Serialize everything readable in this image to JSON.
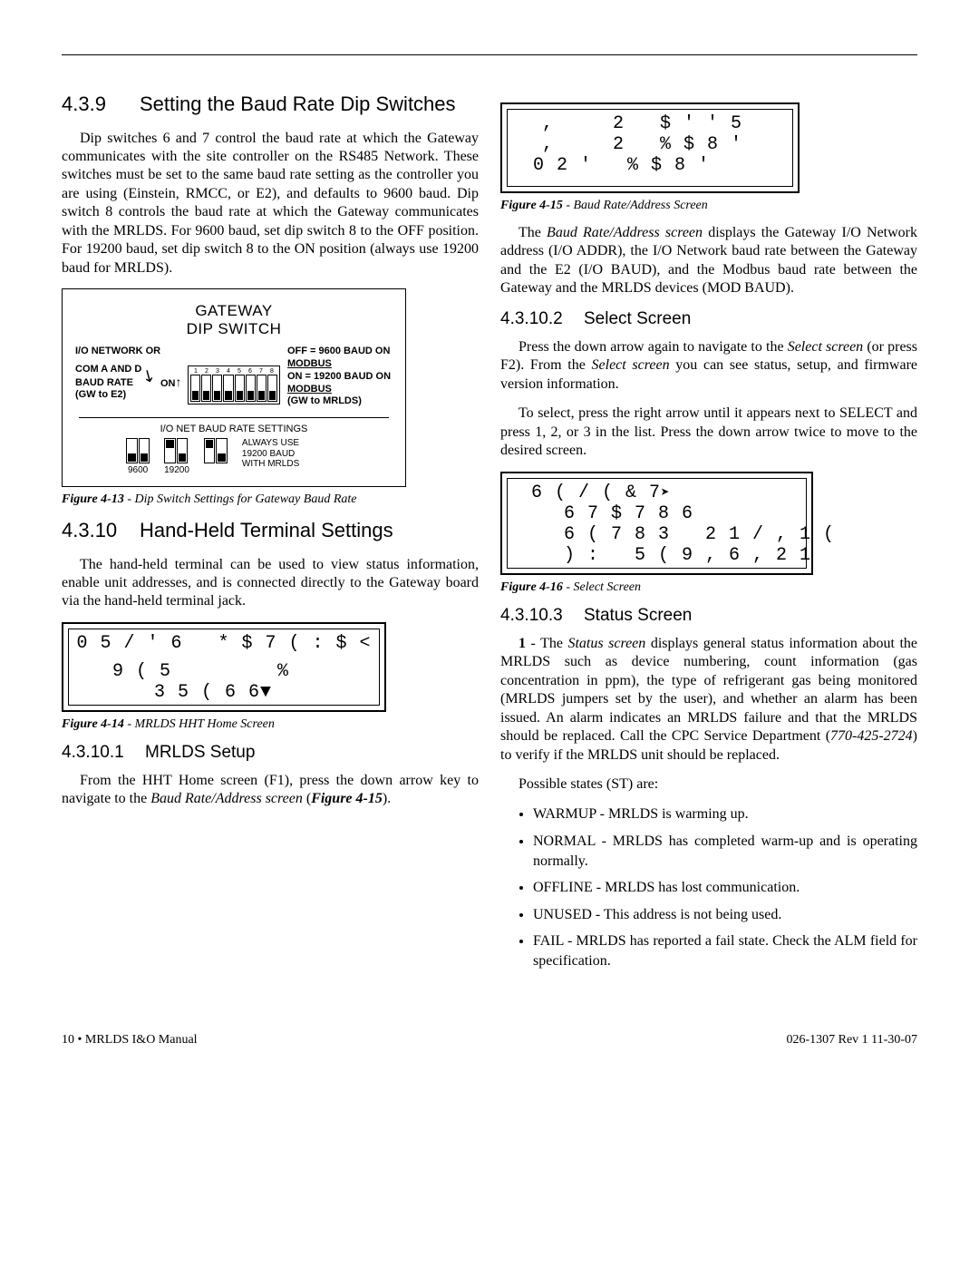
{
  "page": {
    "footer_left": "10 • MRLDS I&O Manual",
    "footer_right": "026-1307 Rev 1 11-30-07"
  },
  "s439": {
    "num": "4.3.9",
    "title": "Setting the Baud Rate Dip Switches",
    "p1": "Dip switches 6 and 7 control the baud rate at which the Gateway communicates with the site controller on the RS485 Network. These switches must be set to the same baud rate setting as the controller you are using (Einstein, RMCC, or E2), and defaults to 9600 baud. Dip switch 8 controls the baud rate at which the Gateway communicates with the MRLDS. For 9600 baud, set dip switch 8 to the OFF position. For 19200 baud, set dip switch 8 to the ON position (always use 19200 baud for MRLDS)."
  },
  "fig413": {
    "caption_b": "Figure 4-13",
    "caption_r": " - Dip Switch Settings for Gateway Baud Rate",
    "title1": "GATEWAY",
    "title2": "DIP SWITCH",
    "left_l1": "I/O NETWORK OR",
    "left_l2": "COM A AND D",
    "left_l3": "BAUD RATE",
    "left_l4": "(GW to E2)",
    "on": "ON",
    "right_l1": "OFF = 9600 BAUD ON",
    "right_l2": "MODBUS",
    "right_l3": "ON = 19200 BAUD ON",
    "right_l4": "MODBUS",
    "right_l5": "(GW to MRLDS)",
    "bset": "I/O NET BAUD RATE SETTINGS",
    "b9600": "9600",
    "b19200": "19200",
    "btxt1": "ALWAYS USE",
    "btxt2": "19200 BAUD",
    "btxt3": "WITH MRLDS",
    "dip_main_up": [
      false,
      false,
      false,
      false,
      false,
      false,
      false,
      false
    ],
    "mini_left_up": [
      false,
      false
    ],
    "mini_mid_up": [
      true,
      false
    ],
    "mini_right_up": [
      true,
      false
    ]
  },
  "s4310": {
    "num": "4.3.10",
    "title": "Hand-Held Terminal Settings",
    "p1": "The hand-held terminal can be used to view status information, enable unit addresses, and is connected directly to the Gateway board via the hand-held terminal jack."
  },
  "fig414": {
    "caption_b": "Figure 4-14",
    "caption_r": " - MRLDS HHT Home Screen",
    "l1": "0 5 / ' 6   * $ 7 ( : $ <",
    "l2": "9 ( 5         %",
    "l3": "  3 5 ( 6 6"
  },
  "s43101": {
    "num": "4.3.10.1",
    "title": "MRLDS Setup",
    "p1_a": "From the HHT Home screen (F1), press the down arrow key to navigate to the ",
    "p1_i": "Baud Rate/Address screen",
    "p1_b": " (",
    "p1_bi": "Figure 4-15",
    "p1_c": ")."
  },
  "fig415": {
    "caption_b": "Figure 4-15",
    "caption_r": " - Baud Rate/Address Screen",
    "l1": ",     2   $ ' ' 5",
    "l2": ",     2   % $ 8 '",
    "l3": "0 2 '   % $ 8 '"
  },
  "p_after415": {
    "a": "The ",
    "i1": "Baud Rate/Address screen",
    "b": " displays the Gateway I/O Network address (I/O ADDR), the I/O Network baud rate between the Gateway and the E2 (I/O BAUD), and the Modbus baud rate between the Gateway and the MRLDS devices (MOD BAUD)."
  },
  "s43102": {
    "num": "4.3.10.2",
    "title": "Select Screen",
    "p1_a": "Press the down arrow again to navigate to the ",
    "p1_i1": "Select screen",
    "p1_b": " (or press F2). From the ",
    "p1_i2": "Select screen",
    "p1_c": " you can see status, setup, and firmware version information.",
    "p2": "To select, press the right arrow until it appears next to SELECT and press 1, 2, or 3 in the list. Press the down arrow twice to move to the desired screen."
  },
  "fig416": {
    "caption_b": "Figure 4-16",
    "caption_r": " - Select Screen",
    "l1": "6 ( / ( & 7",
    "l2": "  6 7 $ 7 8 6",
    "l3": "  6 ( 7 8 3   2 1 / , 1 (",
    "l4": "  ) :   5 ( 9 , 6 , 2 1"
  },
  "s43103": {
    "num": "4.3.10.3",
    "title": "Status Screen",
    "p1_a": "1",
    "p1_b": " - The ",
    "p1_i": "Status screen",
    "p1_c": " displays general status information about the MRLDS such as device numbering, count information (gas concentration in ppm), the type of refrigerant gas being monitored (MRLDS jumpers set by the user), and whether an alarm has been issued. An alarm indicates an MRLDS failure and that the MRLDS should be replaced. Call the CPC Service Department (",
    "p1_ph": "770-425-2724",
    "p1_d": ") to verify if the MRLDS unit should be replaced.",
    "p2": "Possible states (ST) are:",
    "li1": "WARMUP - MRLDS is warming up.",
    "li2": "NORMAL - MRLDS has completed warm-up and is operating normally.",
    "li3": "OFFLINE - MRLDS has lost communication.",
    "li4": "UNUSED - This address is not being used.",
    "li5": "FAIL - MRLDS has reported a fail state. Check the ALM field for specification."
  }
}
